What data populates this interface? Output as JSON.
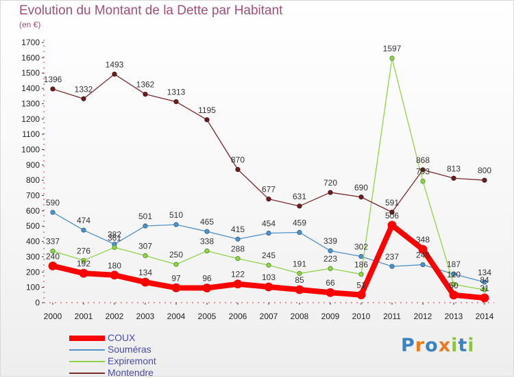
{
  "chart_data": {
    "type": "line",
    "title": "Evolution du Montant de la Dette par Habitant",
    "subtitle": "(en €)",
    "xlabel": "",
    "ylabel": "",
    "x": [
      "2000",
      "2001",
      "2002",
      "2003",
      "2004",
      "2005",
      "2006",
      "2007",
      "2008",
      "2009",
      "2010",
      "2011",
      "2012",
      "2013",
      "2014"
    ],
    "ylim": [
      0,
      1700
    ],
    "yticks": [
      0,
      100,
      200,
      300,
      400,
      500,
      600,
      700,
      800,
      900,
      1000,
      1100,
      1200,
      1300,
      1400,
      1500,
      1600,
      1700
    ],
    "grid": false,
    "legend_position": "bottom-left",
    "series": [
      {
        "name": "COUX",
        "color": "#ff0000",
        "values": [
          240,
          192,
          180,
          134,
          97,
          96,
          122,
          103,
          85,
          66,
          51,
          506,
          348,
          50,
          31
        ]
      },
      {
        "name": "Souméras",
        "color": "#4f91c9",
        "values": [
          590,
          474,
          382,
          501,
          510,
          465,
          415,
          454,
          459,
          339,
          302,
          237,
          248,
          187,
          134
        ]
      },
      {
        "name": "Expiremont",
        "color": "#8fd34a",
        "values": [
          337,
          276,
          361,
          307,
          250,
          338,
          288,
          245,
          191,
          223,
          186,
          1597,
          793,
          120,
          84
        ]
      },
      {
        "name": "Montendre",
        "color": "#7b2a2a",
        "values": [
          1396,
          1332,
          1493,
          1362,
          1313,
          1195,
          870,
          677,
          631,
          720,
          690,
          591,
          868,
          813,
          800
        ]
      }
    ]
  },
  "brand": {
    "letters": [
      "P",
      "r",
      "o",
      "x",
      "i",
      "t",
      "i"
    ],
    "colors": [
      "#3b82c4",
      "#e87a1f",
      "#3b82c4",
      "#e87a1f",
      "#8cc63f",
      "#3b82c4",
      "#8cc63f"
    ]
  }
}
